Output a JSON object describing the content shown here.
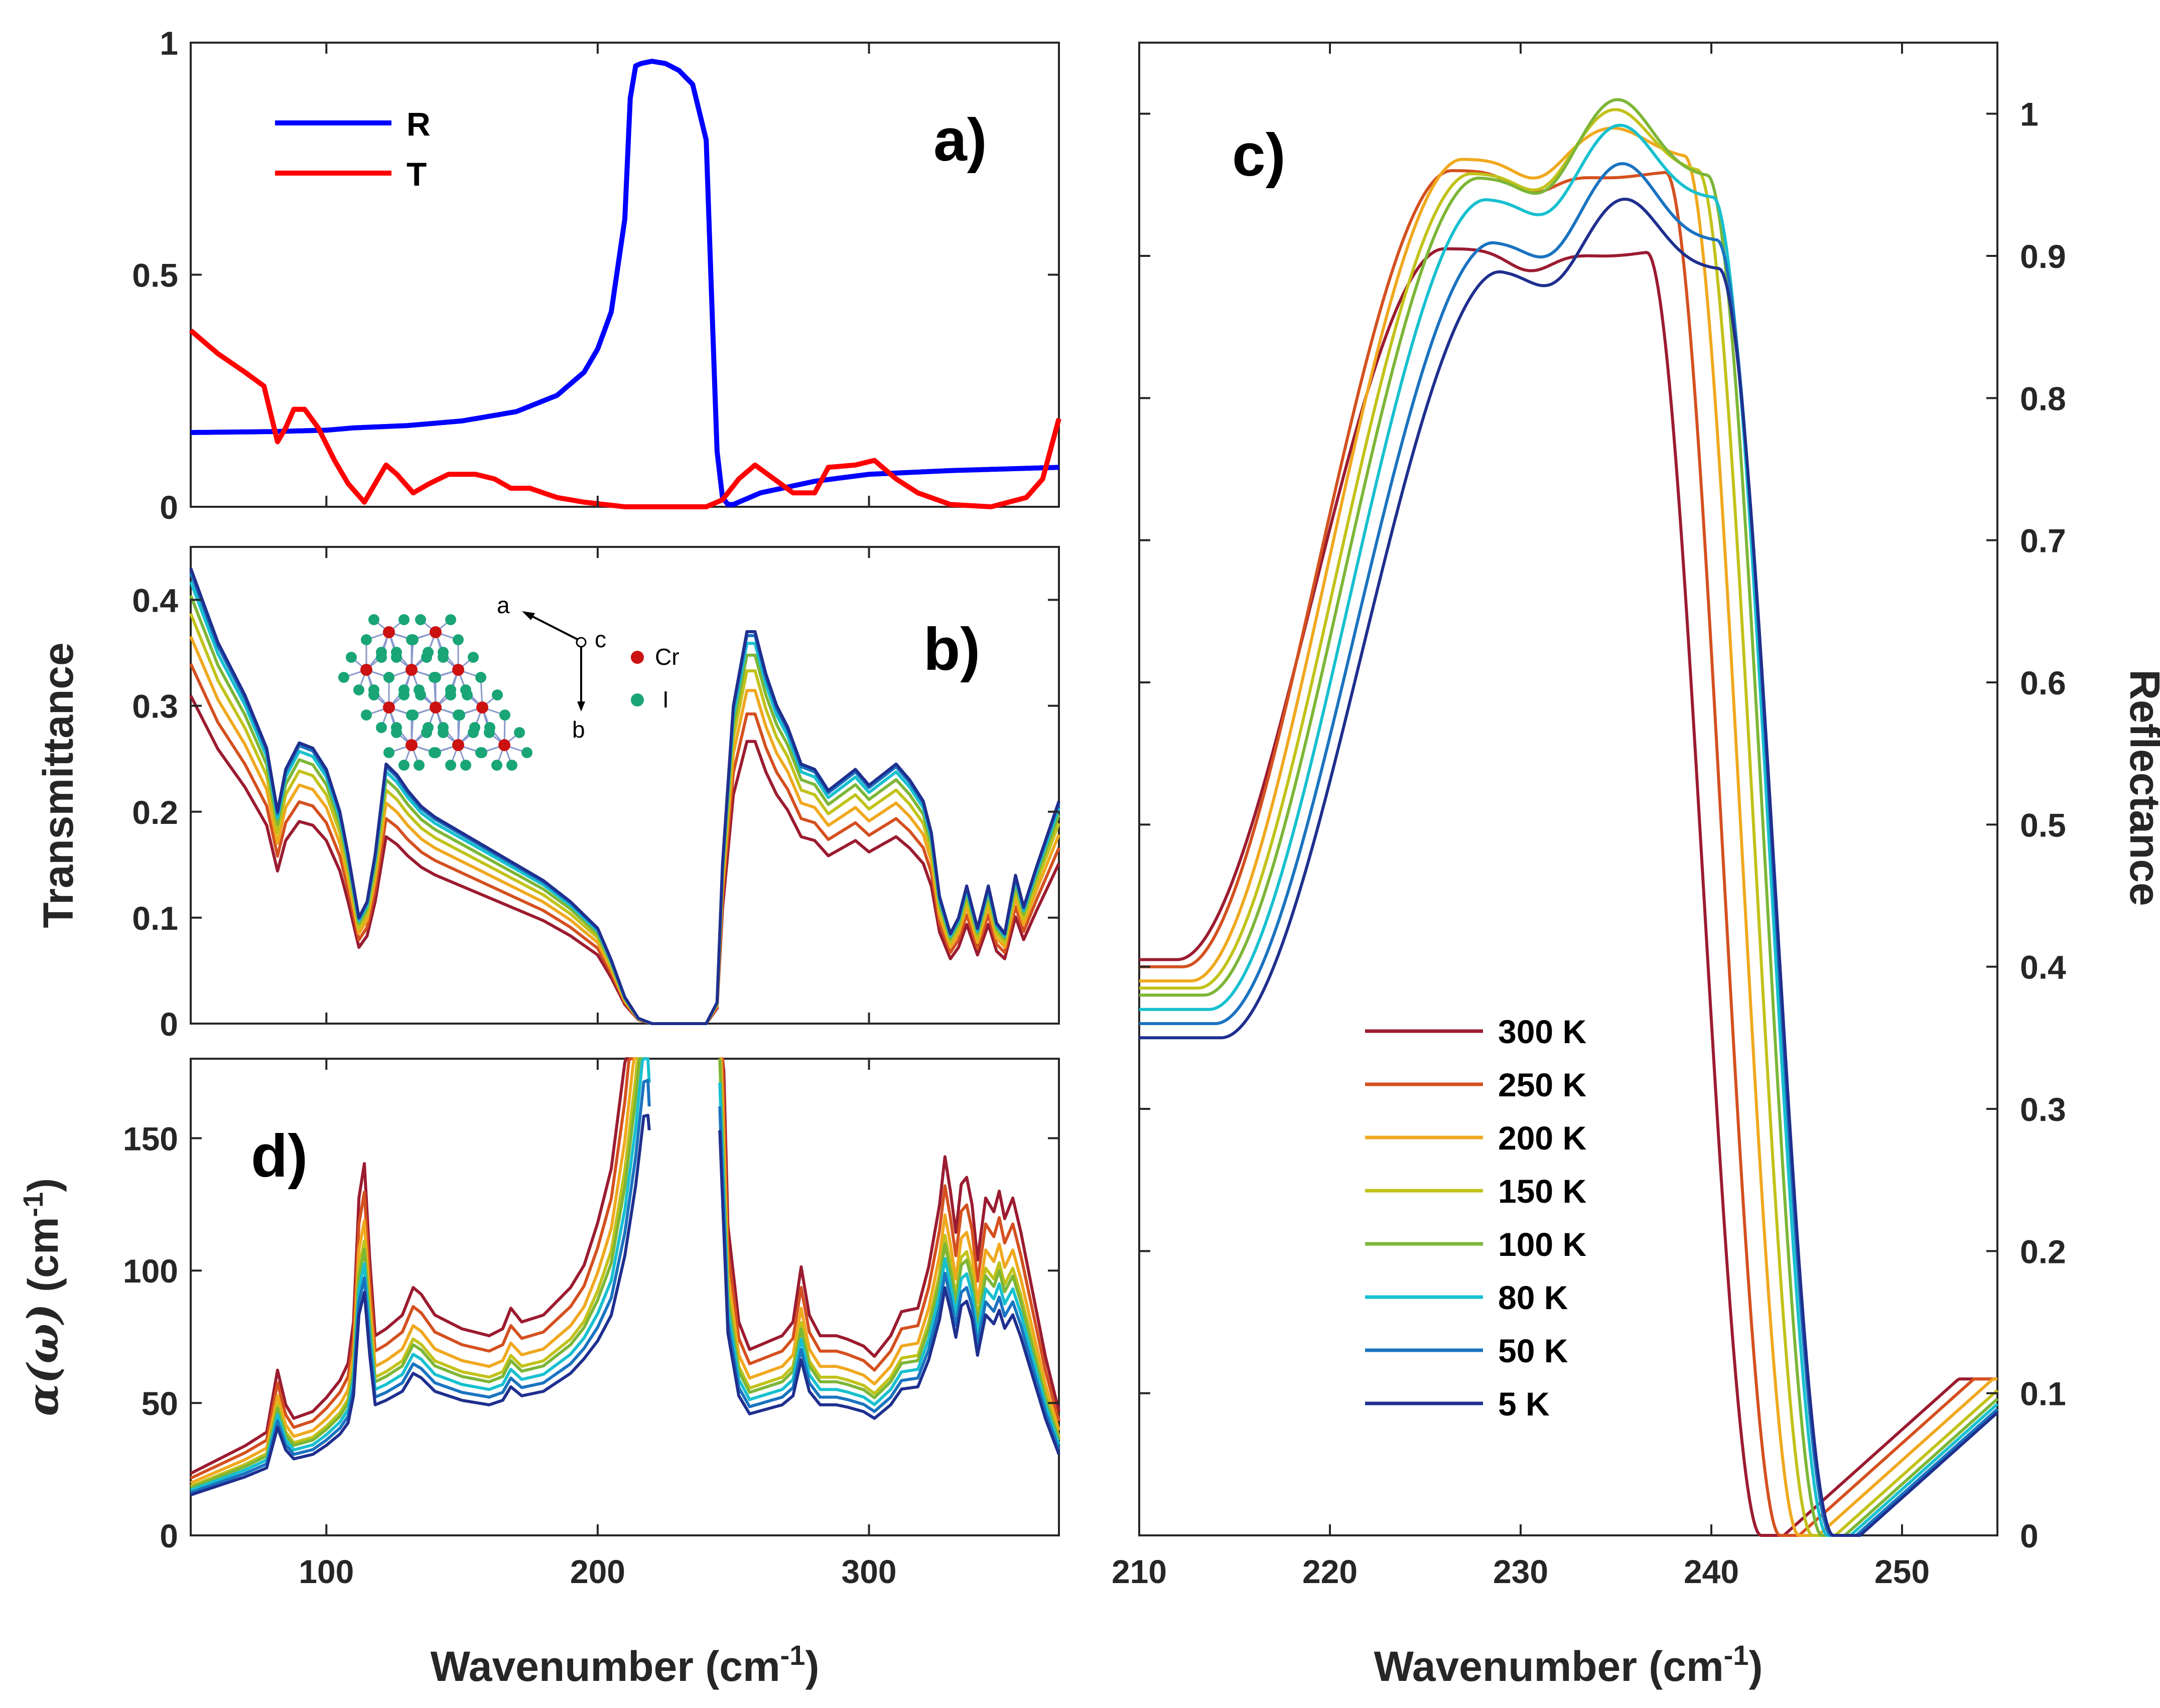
{
  "figure": {
    "colors": {
      "R": "#0000ff",
      "T": "#ff0000",
      "axis": "#262626",
      "temps": [
        "#9b1b30",
        "#d4501f",
        "#f0a81e",
        "#c2c21a",
        "#7cb637",
        "#17c0cf",
        "#1a73c0",
        "#1f2f8f"
      ],
      "cr_atom": "#cc1111",
      "i_atom": "#1aa577"
    }
  },
  "chart_data": [
    {
      "id": "a",
      "type": "line",
      "panel_label": "a)",
      "x_range": [
        50,
        370
      ],
      "ylim": [
        0,
        1
      ],
      "yticks": [
        "0",
        "0.5",
        "1"
      ],
      "legend": {
        "placement": "top-left",
        "entries": [
          "R",
          "T"
        ]
      },
      "series": [
        {
          "name": "R",
          "color": "#0000ff",
          "x": [
            50,
            80,
            100,
            110,
            130,
            150,
            170,
            185,
            195,
            200,
            205,
            210,
            212,
            214,
            216,
            220,
            225,
            230,
            235,
            240,
            242,
            244,
            246,
            248,
            250,
            260,
            280,
            300,
            330,
            370
          ],
          "y": [
            0.16,
            0.162,
            0.165,
            0.17,
            0.175,
            0.185,
            0.205,
            0.24,
            0.29,
            0.34,
            0.42,
            0.62,
            0.88,
            0.95,
            0.955,
            0.96,
            0.955,
            0.94,
            0.91,
            0.79,
            0.45,
            0.12,
            0.02,
            0.005,
            0.005,
            0.03,
            0.055,
            0.07,
            0.078,
            0.085
          ]
        },
        {
          "name": "T",
          "color": "#ff0000",
          "x": [
            50,
            60,
            70,
            77,
            82,
            85,
            88,
            92,
            97,
            103,
            108,
            114,
            118,
            122,
            126,
            132,
            138,
            145,
            155,
            162,
            168,
            175,
            180,
            185,
            195,
            210,
            225,
            240,
            246,
            252,
            258,
            265,
            272,
            280,
            285,
            295,
            302,
            310,
            318,
            330,
            345,
            358,
            364,
            370
          ],
          "y": [
            0.38,
            0.33,
            0.29,
            0.26,
            0.14,
            0.17,
            0.21,
            0.21,
            0.17,
            0.1,
            0.05,
            0.01,
            0.05,
            0.09,
            0.07,
            0.03,
            0.05,
            0.07,
            0.07,
            0.06,
            0.04,
            0.04,
            0.03,
            0.02,
            0.01,
            0.0,
            0.0,
            0.0,
            0.015,
            0.06,
            0.09,
            0.06,
            0.03,
            0.03,
            0.085,
            0.09,
            0.1,
            0.06,
            0.03,
            0.005,
            0.0,
            0.02,
            0.06,
            0.19
          ]
        }
      ]
    },
    {
      "id": "b",
      "type": "line",
      "panel_label": "b)",
      "ylabel": "Transmittance",
      "x_range": [
        50,
        370
      ],
      "ylim": [
        0,
        0.45
      ],
      "yticks": [
        "0",
        "0.1",
        "0.2",
        "0.3",
        "0.4"
      ],
      "note": "curves from 300 K (lowest) to 5 K (highest), colors per temperature legend",
      "scales": [
        0.72,
        0.79,
        0.85,
        0.9,
        0.94,
        0.97,
        0.99,
        1.0
      ],
      "base_curve": {
        "x": [
          50,
          60,
          70,
          78,
          82,
          85,
          90,
          95,
          100,
          105,
          108,
          112,
          115,
          118,
          122,
          126,
          130,
          135,
          140,
          150,
          160,
          170,
          180,
          190,
          200,
          205,
          210,
          215,
          220,
          225,
          240,
          244,
          246,
          250,
          255,
          258,
          262,
          266,
          270,
          275,
          280,
          285,
          290,
          295,
          300,
          305,
          310,
          315,
          320,
          323,
          326,
          330,
          333,
          336,
          340,
          344,
          347,
          350,
          354,
          357,
          362,
          370
        ],
        "y": [
          0.43,
          0.36,
          0.31,
          0.26,
          0.2,
          0.24,
          0.265,
          0.26,
          0.24,
          0.2,
          0.16,
          0.1,
          0.115,
          0.16,
          0.245,
          0.235,
          0.22,
          0.205,
          0.195,
          0.18,
          0.165,
          0.15,
          0.135,
          0.115,
          0.09,
          0.06,
          0.025,
          0.005,
          0.0,
          0.0,
          0.0,
          0.02,
          0.15,
          0.3,
          0.37,
          0.37,
          0.33,
          0.3,
          0.28,
          0.245,
          0.24,
          0.22,
          0.23,
          0.24,
          0.225,
          0.235,
          0.245,
          0.23,
          0.21,
          0.18,
          0.12,
          0.085,
          0.1,
          0.13,
          0.09,
          0.13,
          0.095,
          0.085,
          0.14,
          0.11,
          0.15,
          0.21
        ]
      }
    },
    {
      "id": "d",
      "type": "line",
      "panel_label": "d)",
      "ylabel_parts": {
        "sym": "α(ω)",
        "rest": " (cm",
        "sup": "-1",
        "end": ")"
      },
      "xlabel_parts": {
        "main": "Wavenumber (cm",
        "sup": "-1",
        "end": ")"
      },
      "x_range": [
        50,
        370
      ],
      "xticks": [
        "100",
        "200",
        "300"
      ],
      "ylim": [
        0,
        180
      ],
      "yticks": [
        "0",
        "50",
        "100",
        "150"
      ],
      "scales": [
        1.3,
        1.2,
        1.1,
        1.03,
        1.0,
        0.95,
        0.9,
        0.85
      ],
      "base_curve": {
        "x": [
          50,
          60,
          70,
          78,
          82,
          85,
          88,
          95,
          100,
          105,
          108,
          110,
          112,
          114,
          116,
          118,
          122,
          128,
          132,
          135,
          140,
          150,
          160,
          165,
          168,
          172,
          180,
          190,
          200,
          205,
          210,
          214,
          217,
          219,
          245,
          246,
          248,
          252,
          256,
          262,
          268,
          272,
          275,
          278,
          282,
          288,
          292,
          298,
          302,
          308,
          312,
          318,
          322,
          326,
          328,
          330,
          332,
          334,
          336,
          338,
          340,
          343,
          346,
          348,
          350,
          353,
          356,
          360,
          365,
          370
        ],
        "y": [
          18,
          22,
          26,
          30,
          48,
          38,
          34,
          36,
          40,
          45,
          50,
          62,
          98,
          108,
          80,
          58,
          60,
          64,
          72,
          70,
          64,
          60,
          58,
          60,
          66,
          62,
          64,
          72,
          85,
          95,
          120,
          150,
          180,
          180,
          180,
          150,
          90,
          62,
          54,
          56,
          58,
          62,
          78,
          64,
          58,
          58,
          57,
          55,
          52,
          58,
          65,
          66,
          78,
          96,
          110,
          100,
          88,
          102,
          104,
          96,
          80,
          98,
          94,
          100,
          92,
          98,
          88,
          72,
          52,
          36
        ]
      }
    },
    {
      "id": "c",
      "type": "line",
      "panel_label": "c)",
      "ylabel": "Reflectance",
      "xlabel_parts": {
        "main": "Wavenumber (cm",
        "sup": "-1",
        "end": ")"
      },
      "x_range": [
        210,
        255
      ],
      "xticks": [
        "210",
        "220",
        "230",
        "240",
        "250"
      ],
      "ylim": [
        0,
        1.05
      ],
      "yticks": [
        "0",
        "0.1",
        "0.2",
        "0.3",
        "0.4",
        "0.5",
        "0.6",
        "0.7",
        "0.8",
        "0.9",
        "1"
      ],
      "legend": {
        "placement": "bottom-left",
        "entries": [
          "300 K",
          "250 K",
          "200 K",
          "150 K",
          "100 K",
          "80 K",
          "50 K",
          "5 K"
        ]
      },
      "series": [
        {
          "name": "300 K",
          "params": {
            "s": 0,
            "shoulder": 0.905,
            "peak": 0.9,
            "start": 0.405,
            "post": 0.35,
            "dipx": 243.8,
            "fallx": 239.8
          }
        },
        {
          "name": "250 K",
          "params": {
            "s": 0.5,
            "shoulder": 0.96,
            "peak": 0.955,
            "start": 0.4,
            "post": 0.38,
            "dipx": 244.6,
            "fallx": 240.8
          }
        },
        {
          "name": "200 K",
          "params": {
            "s": 1.2,
            "shoulder": 0.968,
            "peak": 0.99,
            "start": 0.39,
            "post": 0.4,
            "dipx": 245.6,
            "fallx": 241.8
          }
        },
        {
          "name": "150 K",
          "params": {
            "s": 1.8,
            "shoulder": 0.958,
            "peak": 1.003,
            "start": 0.385,
            "post": 0.4,
            "dipx": 246.5,
            "fallx": 242.5
          }
        },
        {
          "name": "100 K",
          "params": {
            "s": 2.3,
            "shoulder": 0.955,
            "peak": 1.01,
            "start": 0.38,
            "post": 0.38,
            "dipx": 247.0,
            "fallx": 243.0
          }
        },
        {
          "name": "80 K",
          "params": {
            "s": 2.8,
            "shoulder": 0.94,
            "peak": 0.992,
            "start": 0.37,
            "post": 0.37,
            "dipx": 247.3,
            "fallx": 243.3
          }
        },
        {
          "name": "50 K",
          "params": {
            "s": 3.3,
            "shoulder": 0.91,
            "peak": 0.965,
            "start": 0.36,
            "post": 0.36,
            "dipx": 247.6,
            "fallx": 243.5
          }
        },
        {
          "name": "5 K",
          "params": {
            "s": 3.8,
            "shoulder": 0.89,
            "peak": 0.94,
            "start": 0.35,
            "post": 0.35,
            "dipx": 247.8,
            "fallx": 243.6
          }
        }
      ]
    }
  ],
  "inset": {
    "axis_a": "a",
    "axis_b": "b",
    "axis_c": "c",
    "cr_label": "Cr",
    "i_label": "I"
  }
}
